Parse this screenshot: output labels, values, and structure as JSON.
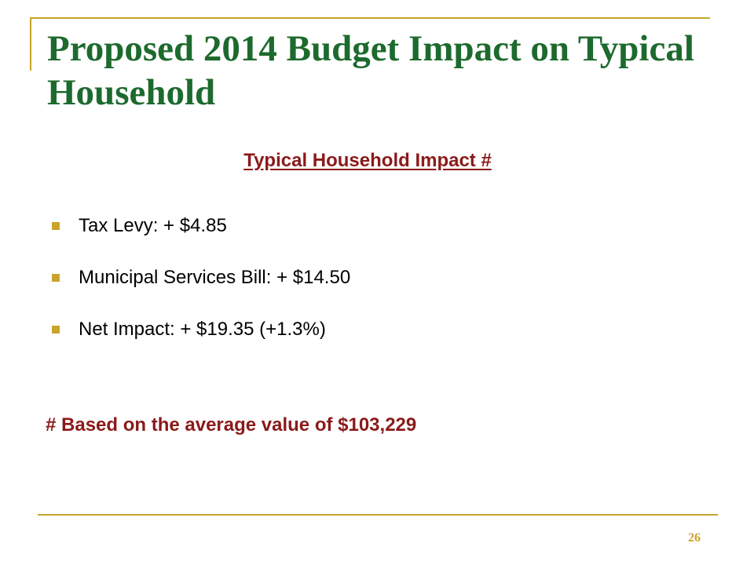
{
  "slide": {
    "title": "Proposed 2014 Budget Impact on Typical Household",
    "subtitle": "Typical Household Impact #",
    "bullets": [
      "Tax Levy: + $4.85",
      "Municipal Services Bill: + $14.50",
      "Net Impact: + $19.35 (+1.3%)"
    ],
    "footnote": "# Based on the average value of $103,229",
    "page_number": "26"
  },
  "colors": {
    "title": "#1d6a2e",
    "accent_red": "#8b1a1a",
    "accent_gold": "#c8a42a",
    "body_text": "#000000"
  },
  "icons": {
    "bullet": "square-bullet-icon"
  }
}
